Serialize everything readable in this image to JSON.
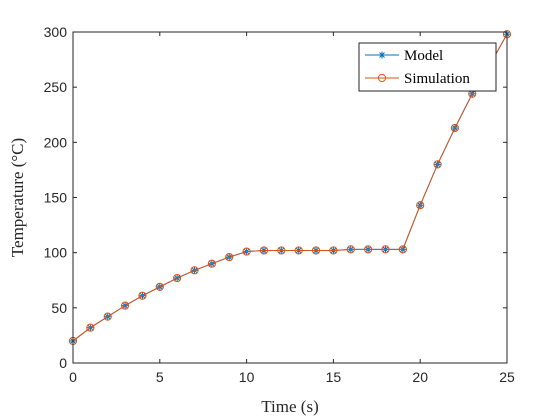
{
  "chart_data": {
    "type": "line",
    "xlabel": "Time (s)",
    "ylabel": "Temperature (°C)",
    "xlim": [
      0,
      25
    ],
    "ylim": [
      0,
      300
    ],
    "xticks": [
      0,
      5,
      10,
      15,
      20,
      25
    ],
    "yticks": [
      0,
      50,
      100,
      150,
      200,
      250,
      300
    ],
    "grid": false,
    "legend_position": "top-right",
    "x": [
      0,
      1,
      2,
      3,
      4,
      5,
      6,
      7,
      8,
      9,
      10,
      11,
      12,
      13,
      14,
      15,
      16,
      17,
      18,
      19,
      20,
      21,
      22,
      23,
      24,
      25
    ],
    "series": [
      {
        "name": "Model",
        "marker": "asterisk",
        "color": "#0072BD",
        "values": [
          20,
          32,
          42,
          52,
          61,
          69,
          77,
          84,
          90,
          96,
          101,
          102,
          102,
          102,
          102,
          102,
          103,
          103,
          103,
          103,
          143,
          180,
          213,
          244,
          270,
          298
        ]
      },
      {
        "name": "Simulation",
        "marker": "circle",
        "color": "#D95319",
        "values": [
          20,
          32,
          42,
          52,
          61,
          69,
          77,
          84,
          90,
          96,
          101,
          102,
          102,
          102,
          102,
          102,
          103,
          103,
          103,
          103,
          143,
          180,
          213,
          244,
          270,
          298
        ]
      }
    ]
  }
}
